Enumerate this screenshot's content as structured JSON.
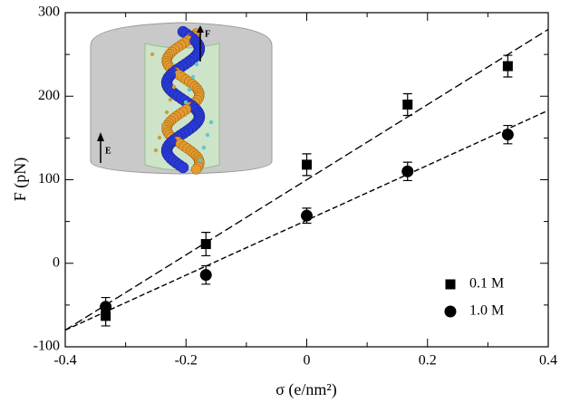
{
  "chart_data": {
    "type": "scatter",
    "xlabel": "σ (e/nm²)",
    "ylabel": "F (pN)",
    "xlim": [
      -0.4,
      0.4
    ],
    "xticks": [
      -0.4,
      -0.2,
      0,
      0.2,
      0.4
    ],
    "xticks_minor": [
      -0.3,
      -0.1,
      0.1,
      0.3
    ],
    "ylim": [
      -100,
      300
    ],
    "yticks": [
      -100,
      0,
      100,
      200,
      300
    ],
    "yticks_minor": [
      -50,
      50,
      150,
      250
    ],
    "legend": "lower right",
    "series": [
      {
        "name": "0.1 M",
        "marker": "square",
        "color": "#000000",
        "x": [
          -0.333,
          -0.167,
          0,
          0.167,
          0.333
        ],
        "values": [
          -63,
          23,
          118,
          190,
          236
        ],
        "errors": [
          12,
          14,
          13,
          13,
          13
        ]
      },
      {
        "name": "1.0 M",
        "marker": "circle",
        "color": "#000000",
        "x": [
          -0.333,
          -0.167,
          0,
          0.167,
          0.333
        ],
        "values": [
          -52,
          -14,
          57,
          110,
          154
        ],
        "errors": [
          11,
          11,
          9,
          11,
          11
        ]
      }
    ],
    "fits": [
      {
        "x": [
          -0.4,
          0.4
        ],
        "values": [
          -80,
          280
        ],
        "dash": "9 4"
      },
      {
        "x": [
          -0.4,
          0.4
        ],
        "values": [
          -80,
          183
        ],
        "dash": "6 3"
      }
    ],
    "inset": {
      "force_label": "F",
      "field_label": "E"
    }
  }
}
